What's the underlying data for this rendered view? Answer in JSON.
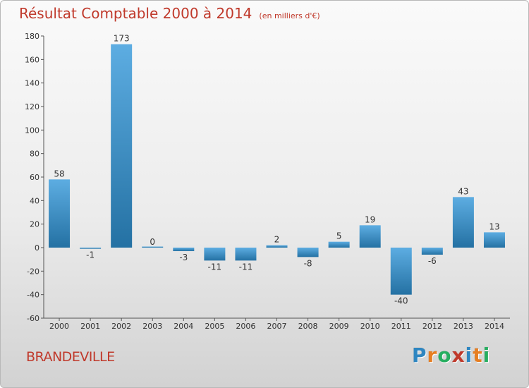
{
  "title": "Résultat Comptable 2000 à 2014",
  "unit": "(en milliers d'€)",
  "commune": "BRANDEVILLE",
  "logo": {
    "letters": [
      "P",
      "r",
      "o",
      "x",
      "i",
      "t",
      "i"
    ],
    "colors": [
      "#2e86c1",
      "#e67e22",
      "#27ae60",
      "#c0392b",
      "#2e86c1",
      "#e67e22",
      "#27ae60"
    ]
  },
  "colors": {
    "bar_light": "#5dade2",
    "bar_dark": "#2471a3",
    "title": "#c0392b"
  },
  "chart_data": {
    "type": "bar",
    "title": "Résultat Comptable 2000 à 2014",
    "categories": [
      "2000",
      "2001",
      "2002",
      "2003",
      "2004",
      "2005",
      "2006",
      "2007",
      "2008",
      "2009",
      "2010",
      "2011",
      "2012",
      "2013",
      "2014"
    ],
    "values": [
      58,
      -1,
      173,
      0,
      -3,
      -11,
      -11,
      2,
      -8,
      5,
      19,
      -40,
      -6,
      43,
      13
    ],
    "value_labels": [
      "58",
      "-1",
      "173",
      "0",
      "-3",
      "-11",
      "-11",
      "2",
      "-8",
      "5",
      "19",
      "-40",
      "-6",
      "43",
      "13"
    ],
    "ylim": [
      -60,
      180
    ],
    "yticks": [
      180,
      160,
      140,
      120,
      100,
      80,
      60,
      40,
      20,
      0,
      -20,
      -40,
      -60
    ],
    "grid": false,
    "legend": "none"
  }
}
